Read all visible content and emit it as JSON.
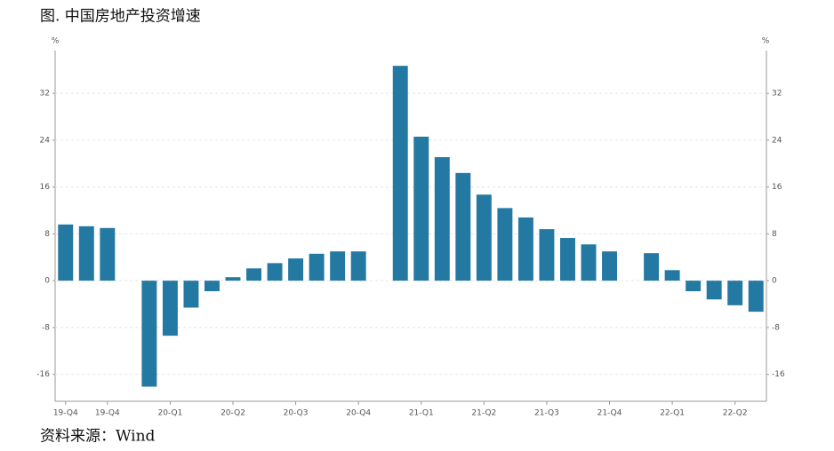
{
  "chart_data": {
    "type": "bar",
    "title": "图. 中国房地产投资增速",
    "source": "资料来源：Wind",
    "ylabel": "%",
    "y2label": "%",
    "categories": [
      "19-Q4",
      null,
      "19-Q4",
      null,
      null,
      "20-Q1",
      null,
      null,
      "20-Q2",
      null,
      null,
      "20-Q3",
      null,
      null,
      "20-Q4",
      null,
      null,
      "21-Q1",
      null,
      null,
      "21-Q2",
      null,
      null,
      "21-Q3",
      null,
      null,
      "21-Q4",
      null,
      null,
      "22-Q1",
      null,
      null,
      "22-Q2",
      null
    ],
    "values": [
      9.6,
      9.3,
      9.0,
      null,
      -18.1,
      -9.4,
      -4.6,
      -1.8,
      0.6,
      2.1,
      3.0,
      3.8,
      4.6,
      5.0,
      5.0,
      null,
      36.7,
      24.6,
      21.1,
      18.4,
      14.7,
      12.4,
      10.8,
      8.8,
      7.3,
      6.2,
      5.0,
      null,
      4.7,
      1.8,
      -1.8,
      -3.2,
      -4.2,
      -5.3
    ],
    "color": "#2479a3",
    "ylim": [
      -20.6,
      39.3
    ],
    "yticks": [
      -16,
      -8,
      0,
      8,
      16,
      24,
      32
    ],
    "y2lim": [
      -20.6,
      39.3
    ],
    "y2ticks": [
      -16,
      -8,
      0,
      8,
      16,
      24,
      32
    ],
    "grid": true
  }
}
